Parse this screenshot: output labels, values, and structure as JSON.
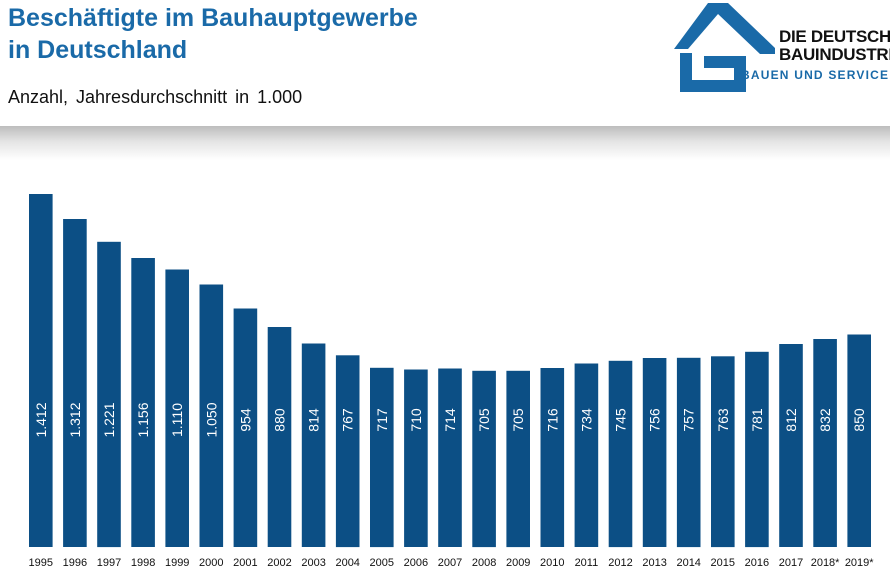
{
  "header": {
    "title_line1": "Beschäftigte im Bauhauptgewerbe",
    "title_line2": "in Deutschland",
    "subtitle": "Anzahl, Jahresdurchschnitt in 1.000"
  },
  "logo": {
    "icon": "house-roof-logo-icon",
    "line1": "DIE DEUTSCH",
    "line2": "BAUINDUSTRI",
    "line3": "BAUEN UND SERVICE",
    "color": "#1a6aa8"
  },
  "colors": {
    "bar": "#0c4f85",
    "title": "#1a6aa8",
    "bar_label": "#ffffff"
  },
  "chart_data": {
    "type": "bar",
    "title": "Beschäftigte im Bauhauptgewerbe in Deutschland",
    "ylabel": "Anzahl, Jahresdurchschnitt in 1.000",
    "xlabel": "",
    "grid": false,
    "legend": "none",
    "ylim": [
      0,
      1500
    ],
    "categories": [
      "1995",
      "1996",
      "1997",
      "1998",
      "1999",
      "2000",
      "2001",
      "2002",
      "2003",
      "2004",
      "2005",
      "2006",
      "2007",
      "2008",
      "2009",
      "2010",
      "2011",
      "2012",
      "2013",
      "2014",
      "2015",
      "2016",
      "2017",
      "2018*",
      "2019*"
    ],
    "values": [
      1412,
      1312,
      1221,
      1156,
      1110,
      1050,
      954,
      880,
      814,
      767,
      717,
      710,
      714,
      705,
      705,
      716,
      734,
      745,
      756,
      757,
      763,
      781,
      812,
      832,
      850
    ],
    "labels": [
      "1.412",
      "1.312",
      "1.221",
      "1.156",
      "1.110",
      "1.050",
      "954",
      "880",
      "814",
      "767",
      "717",
      "710",
      "714",
      "705",
      "705",
      "716",
      "734",
      "745",
      "756",
      "757",
      "763",
      "781",
      "812",
      "832",
      "850"
    ]
  }
}
